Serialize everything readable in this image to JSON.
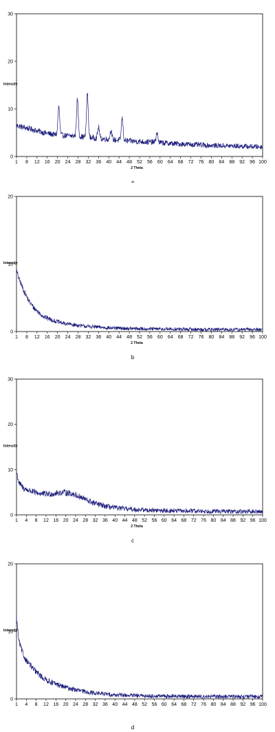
{
  "colors": {
    "series": "#1a1a7a",
    "axis": "#000000",
    "frame": "#000000"
  },
  "chart_data": [
    {
      "type": "line",
      "panel_label": "a",
      "xlabel": "2 Theta",
      "ylabel": "Intensity",
      "xlim": [
        1,
        100
      ],
      "ylim": [
        0,
        30
      ],
      "y_ticks": [
        0,
        10,
        20,
        30
      ],
      "x_tick_labels": [
        "1",
        "8",
        "12",
        "16",
        "20",
        "24",
        "28",
        "32",
        "36",
        "40",
        "44",
        "48",
        "52",
        "56",
        "60",
        "64",
        "68",
        "72",
        "76",
        "80",
        "84",
        "88",
        "92",
        "96",
        "100"
      ],
      "baseline": [
        [
          1,
          6.5
        ],
        [
          4,
          6.1
        ],
        [
          8,
          5.6
        ],
        [
          12,
          5.0
        ],
        [
          16,
          4.6
        ],
        [
          20,
          4.4
        ],
        [
          24,
          4.3
        ],
        [
          28,
          4.1
        ],
        [
          32,
          3.9
        ],
        [
          36,
          3.7
        ],
        [
          40,
          3.5
        ],
        [
          48,
          3.2
        ],
        [
          56,
          3.0
        ],
        [
          64,
          2.7
        ],
        [
          72,
          2.5
        ],
        [
          80,
          2.3
        ],
        [
          88,
          2.2
        ],
        [
          100,
          2.0
        ]
      ],
      "peaks": [
        {
          "x": 18.0,
          "y": 10.5
        },
        {
          "x": 25.5,
          "y": 12.0
        },
        {
          "x": 29.5,
          "y": 13.2
        },
        {
          "x": 34.0,
          "y": 6.2
        },
        {
          "x": 39.0,
          "y": 5.5
        },
        {
          "x": 43.5,
          "y": 8.0
        },
        {
          "x": 57.5,
          "y": 5.0
        }
      ],
      "noise": 0.6
    },
    {
      "type": "line",
      "panel_label": "b",
      "xlabel": "2 Theta",
      "ylabel": "Intensity",
      "xlim": [
        1,
        100
      ],
      "ylim": [
        0,
        20
      ],
      "y_ticks": [
        0,
        10,
        20
      ],
      "x_tick_labels": [
        "1",
        "8",
        "12",
        "16",
        "20",
        "24",
        "28",
        "32",
        "36",
        "40",
        "44",
        "48",
        "52",
        "56",
        "60",
        "64",
        "68",
        "72",
        "76",
        "80",
        "84",
        "88",
        "92",
        "96",
        "100"
      ],
      "baseline": [
        [
          1,
          9.0
        ],
        [
          2,
          7.8
        ],
        [
          4,
          6.0
        ],
        [
          6,
          4.5
        ],
        [
          8,
          3.5
        ],
        [
          10,
          2.8
        ],
        [
          12,
          2.2
        ],
        [
          16,
          1.6
        ],
        [
          20,
          1.2
        ],
        [
          24,
          1.0
        ],
        [
          28,
          0.8
        ],
        [
          32,
          0.7
        ],
        [
          40,
          0.5
        ],
        [
          52,
          0.4
        ],
        [
          64,
          0.35
        ],
        [
          80,
          0.3
        ],
        [
          100,
          0.3
        ]
      ],
      "peaks": [],
      "noise": 0.4
    },
    {
      "type": "line",
      "panel_label": "c",
      "xlabel": "2 Theta",
      "ylabel": "Intensity",
      "xlim": [
        1,
        100
      ],
      "ylim": [
        0,
        30
      ],
      "y_ticks": [
        0,
        10,
        20,
        30
      ],
      "x_tick_labels": [
        "1",
        "4",
        "8",
        "12",
        "16",
        "20",
        "24",
        "28",
        "32",
        "36",
        "40",
        "44",
        "48",
        "52",
        "56",
        "60",
        "64",
        "68",
        "72",
        "76",
        "80",
        "84",
        "88",
        "92",
        "96",
        "100"
      ],
      "baseline": [
        [
          1,
          9.5
        ],
        [
          2,
          7.0
        ],
        [
          4,
          5.8
        ],
        [
          8,
          5.0
        ],
        [
          12,
          4.6
        ],
        [
          16,
          4.7
        ],
        [
          20,
          5.0
        ],
        [
          24,
          4.6
        ],
        [
          28,
          3.6
        ],
        [
          32,
          2.6
        ],
        [
          36,
          2.0
        ],
        [
          40,
          1.6
        ],
        [
          48,
          1.2
        ],
        [
          56,
          1.0
        ],
        [
          64,
          0.9
        ],
        [
          80,
          0.8
        ],
        [
          100,
          0.7
        ]
      ],
      "peaks": [],
      "noise": 0.7
    },
    {
      "type": "line",
      "panel_label": "d",
      "xlabel": "",
      "ylabel": "Intensity",
      "xlim": [
        1,
        100
      ],
      "ylim": [
        0,
        20
      ],
      "y_ticks": [
        0,
        10,
        20
      ],
      "x_tick_labels": [
        "1",
        "4",
        "8",
        "12",
        "16",
        "20",
        "24",
        "28",
        "32",
        "36",
        "40",
        "44",
        "48",
        "52",
        "56",
        "60",
        "64",
        "68",
        "72",
        "76",
        "80",
        "84",
        "88",
        "92",
        "96",
        "100"
      ],
      "baseline": [
        [
          1,
          12.0
        ],
        [
          2,
          8.5
        ],
        [
          4,
          6.2
        ],
        [
          8,
          4.3
        ],
        [
          12,
          3.0
        ],
        [
          16,
          2.3
        ],
        [
          20,
          1.8
        ],
        [
          24,
          1.4
        ],
        [
          28,
          1.1
        ],
        [
          32,
          0.9
        ],
        [
          40,
          0.6
        ],
        [
          52,
          0.45
        ],
        [
          64,
          0.4
        ],
        [
          80,
          0.35
        ],
        [
          100,
          0.35
        ]
      ],
      "peaks": [],
      "noise": 0.45
    }
  ]
}
